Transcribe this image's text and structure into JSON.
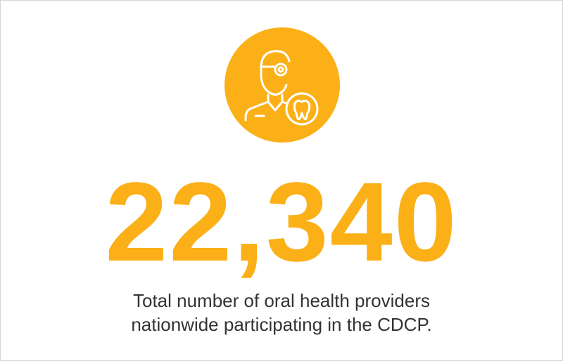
{
  "stat": {
    "value": "22,340",
    "description": [
      "Total number of oral health providers",
      "nationwide participating in the CDCP."
    ]
  }
}
